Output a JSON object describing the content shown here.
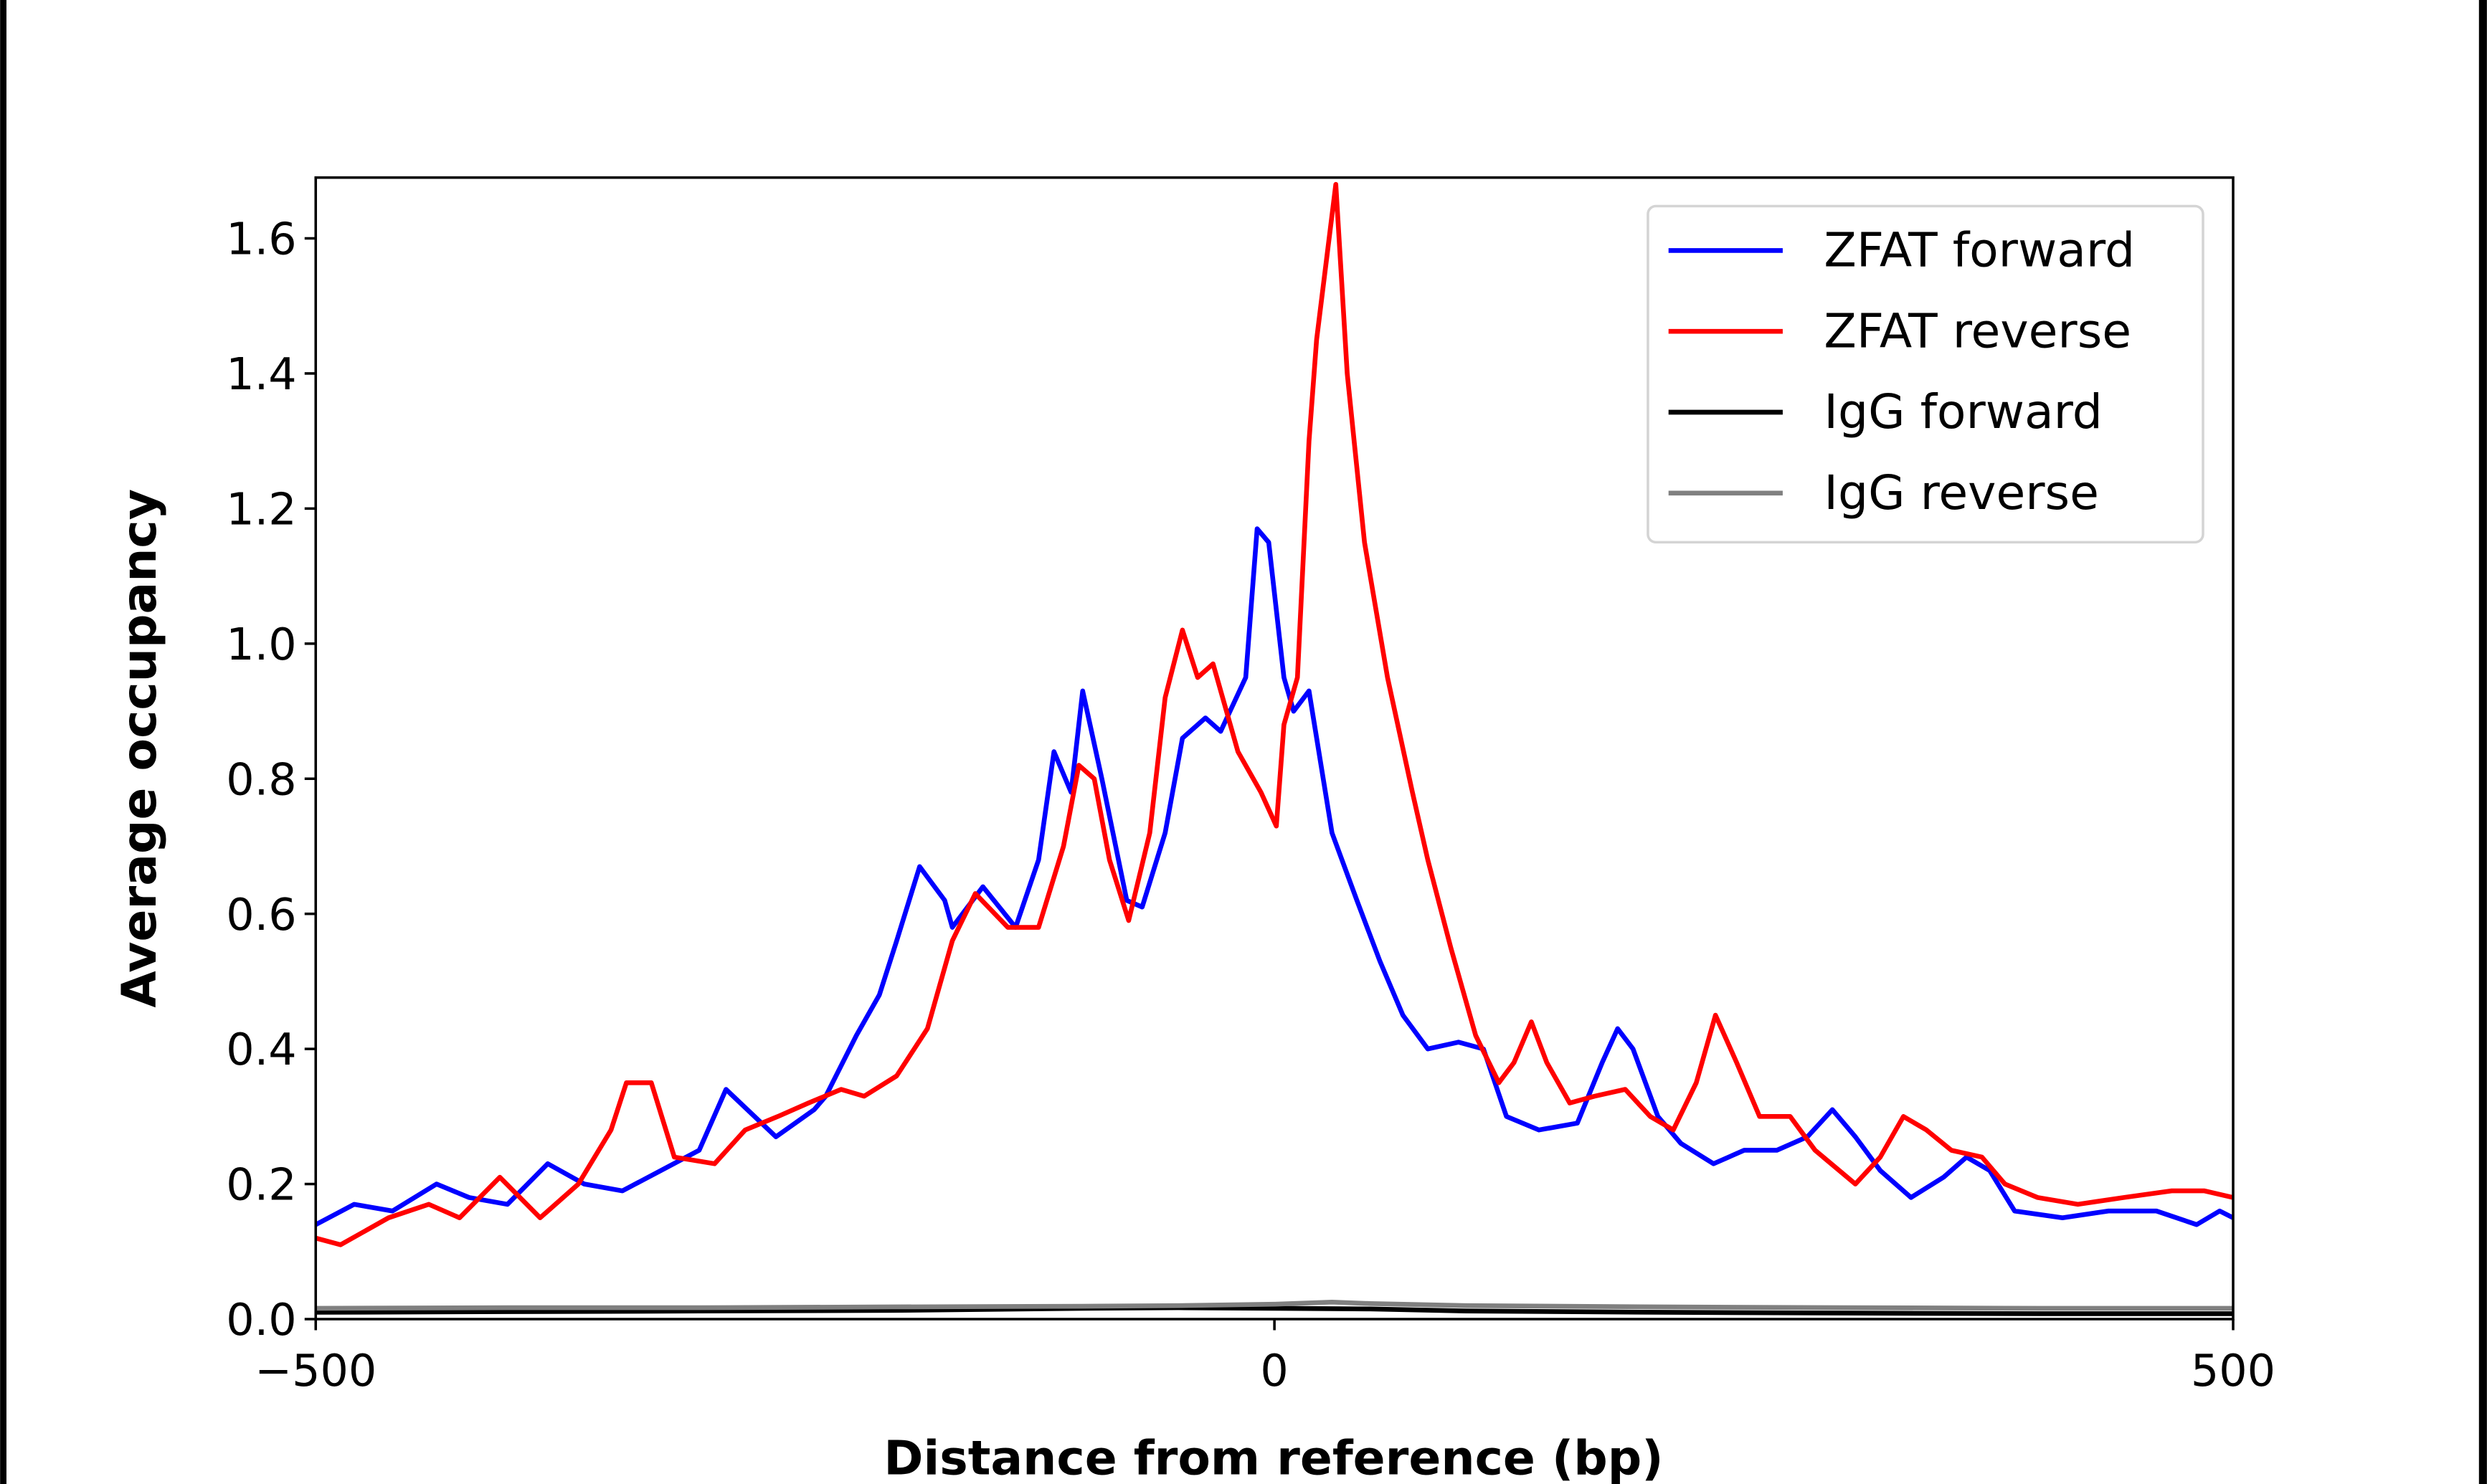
{
  "chart_data": {
    "type": "line",
    "title": "",
    "xlabel": "Distance from reference (bp)",
    "ylabel": "Average occupancy",
    "xlim": [
      -500,
      500
    ],
    "ylim": [
      0,
      1.69
    ],
    "xticks": [
      -500,
      0,
      500
    ],
    "xtick_labels": [
      "−500",
      "0",
      "500"
    ],
    "yticks": [
      0.0,
      0.2,
      0.4,
      0.6,
      0.8,
      1.0,
      1.2,
      1.4,
      1.6
    ],
    "ytick_labels": [
      "0.0",
      "0.2",
      "0.4",
      "0.6",
      "0.8",
      "1.0",
      "1.2",
      "1.4",
      "1.6"
    ],
    "grid": false,
    "legend_placement": "top-right",
    "series": [
      {
        "name": "ZFAT forward",
        "color": "#0000ff",
        "x": [
          -500,
          -480,
          -460,
          -437,
          -420,
          -400,
          -379,
          -360,
          -340,
          -320,
          -300,
          -286,
          -260,
          -240,
          -234,
          -218,
          -206,
          -197,
          -185,
          -172,
          -168,
          -152,
          -135,
          -123,
          -115,
          -106,
          -100,
          -90,
          -77,
          -69,
          -57,
          -48,
          -36,
          -28,
          -15,
          -9,
          -3,
          5,
          10,
          18,
          30,
          43,
          55,
          67,
          80,
          96,
          109,
          121,
          138,
          158,
          171,
          179,
          187,
          200,
          212,
          229,
          245,
          262,
          278,
          291,
          303,
          316,
          332,
          349,
          361,
          373,
          386,
          411,
          435,
          460,
          481,
          493,
          500
        ],
        "y": [
          0.14,
          0.17,
          0.16,
          0.2,
          0.18,
          0.17,
          0.23,
          0.2,
          0.19,
          0.22,
          0.25,
          0.34,
          0.27,
          0.31,
          0.33,
          0.42,
          0.48,
          0.56,
          0.67,
          0.62,
          0.58,
          0.64,
          0.58,
          0.68,
          0.84,
          0.78,
          0.93,
          0.8,
          0.62,
          0.61,
          0.72,
          0.86,
          0.89,
          0.87,
          0.95,
          1.17,
          1.15,
          0.95,
          0.9,
          0.93,
          0.72,
          0.62,
          0.53,
          0.45,
          0.4,
          0.41,
          0.4,
          0.3,
          0.28,
          0.29,
          0.38,
          0.43,
          0.4,
          0.3,
          0.26,
          0.23,
          0.25,
          0.25,
          0.27,
          0.31,
          0.27,
          0.22,
          0.18,
          0.21,
          0.24,
          0.22,
          0.16,
          0.15,
          0.16,
          0.16,
          0.14,
          0.16,
          0.15
        ]
      },
      {
        "name": "ZFAT reverse",
        "color": "#ff0000",
        "x": [
          -500,
          -487,
          -462,
          -441,
          -425,
          -404,
          -383,
          -363,
          -346,
          -338,
          -325,
          -313,
          -292,
          -276,
          -259,
          -243,
          -226,
          -214,
          -197,
          -181,
          -168,
          -156,
          -139,
          -123,
          -110,
          -102,
          -94,
          -86,
          -76,
          -65,
          -57,
          -48,
          -40,
          -32,
          -19,
          -7,
          1,
          5,
          12,
          18,
          22,
          32,
          38,
          47,
          59,
          72,
          80,
          92,
          105,
          117,
          125,
          134,
          142,
          154,
          167,
          183,
          196,
          208,
          220,
          230,
          241,
          253,
          269,
          282,
          303,
          316,
          328,
          340,
          353,
          369,
          381,
          398,
          419,
          443,
          468,
          485,
          500
        ],
        "y": [
          0.12,
          0.11,
          0.15,
          0.17,
          0.15,
          0.21,
          0.15,
          0.2,
          0.28,
          0.35,
          0.35,
          0.24,
          0.23,
          0.28,
          0.3,
          0.32,
          0.34,
          0.33,
          0.36,
          0.43,
          0.56,
          0.63,
          0.58,
          0.58,
          0.7,
          0.82,
          0.8,
          0.68,
          0.59,
          0.72,
          0.92,
          1.02,
          0.95,
          0.97,
          0.84,
          0.78,
          0.73,
          0.88,
          0.95,
          1.3,
          1.45,
          1.68,
          1.4,
          1.15,
          0.95,
          0.78,
          0.68,
          0.55,
          0.42,
          0.35,
          0.38,
          0.44,
          0.38,
          0.32,
          0.33,
          0.34,
          0.3,
          0.28,
          0.35,
          0.45,
          0.38,
          0.3,
          0.3,
          0.25,
          0.2,
          0.24,
          0.3,
          0.28,
          0.25,
          0.24,
          0.2,
          0.18,
          0.17,
          0.18,
          0.19,
          0.19,
          0.18
        ]
      },
      {
        "name": "IgG forward",
        "color": "#000000",
        "x": [
          -500,
          -400,
          -300,
          -200,
          -100,
          -50,
          0,
          50,
          100,
          200,
          300,
          400,
          500
        ],
        "y": [
          0.01,
          0.011,
          0.012,
          0.013,
          0.016,
          0.017,
          0.016,
          0.015,
          0.012,
          0.01,
          0.009,
          0.008,
          0.008
        ]
      },
      {
        "name": "IgG reverse",
        "color": "#808080",
        "x": [
          -500,
          -400,
          -300,
          -200,
          -100,
          -50,
          0,
          30,
          50,
          100,
          200,
          300,
          400,
          500
        ],
        "y": [
          0.016,
          0.017,
          0.017,
          0.018,
          0.019,
          0.02,
          0.022,
          0.025,
          0.023,
          0.02,
          0.018,
          0.017,
          0.016,
          0.016
        ]
      }
    ]
  }
}
